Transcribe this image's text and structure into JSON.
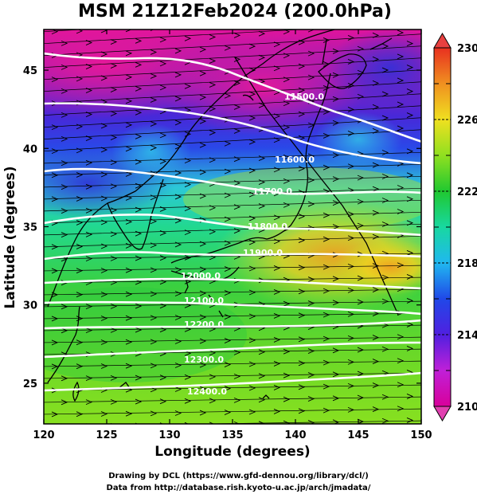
{
  "title": "MSM 21Z12Feb2024 (200.0hPa)",
  "x_axis": {
    "label": "Longitude (degrees)",
    "ticks": [
      "120",
      "125",
      "130",
      "135",
      "140",
      "145",
      "150"
    ],
    "range": [
      120,
      150
    ]
  },
  "y_axis": {
    "label": "Latitude  (degrees)",
    "ticks": [
      "25",
      "30",
      "35",
      "40",
      "45"
    ],
    "range": [
      22.4,
      47.6
    ]
  },
  "colorbar": {
    "min": 210,
    "max": 230,
    "ticks": [
      "210",
      "214",
      "218",
      "222",
      "226",
      "230"
    ],
    "colors": [
      "#d0008e",
      "#e010c0",
      "#7a20e0",
      "#2a38e0",
      "#20c0e8",
      "#10d890",
      "#20c830",
      "#a0e020",
      "#f0e020",
      "#f09010",
      "#e83020"
    ]
  },
  "contours": [
    {
      "label": "11500.0"
    },
    {
      "label": "11600.0"
    },
    {
      "label": "11700.0"
    },
    {
      "label": "11800.0"
    },
    {
      "label": "11900.0"
    },
    {
      "label": "12000.0"
    },
    {
      "label": "12100.0"
    },
    {
      "label": "12200.0"
    },
    {
      "label": "12300.0"
    },
    {
      "label": "12400.0"
    }
  ],
  "credits": {
    "line1": "Drawing by DCL (https://www.gfd-dennou.org/library/dcl/)",
    "line2": "Data from http://database.rish.kyoto-u.ac.jp/arch/jmadata/"
  }
}
